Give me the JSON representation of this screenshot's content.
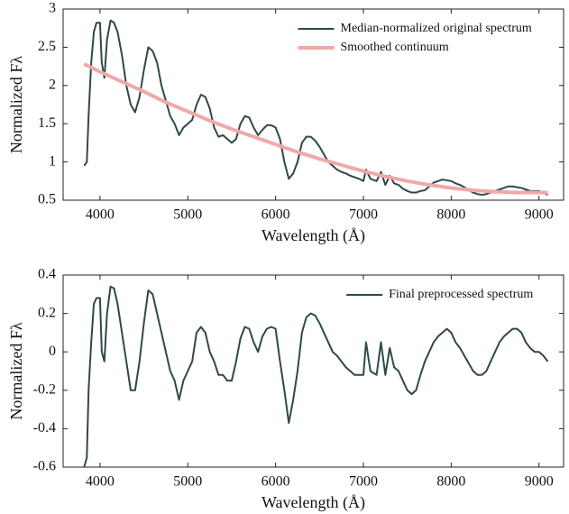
{
  "chart_data": [
    {
      "type": "line",
      "x_label": "Wavelength (Å)",
      "y_label": "Normalized Fλ",
      "xlim": [
        3580,
        9280
      ],
      "xticks": [
        4000,
        5000,
        6000,
        7000,
        8000,
        9000
      ],
      "ylim": [
        0.5,
        3
      ],
      "yticks": [
        0.5,
        1,
        1.5,
        2,
        2.5,
        3
      ],
      "legend": "upper right",
      "series": [
        {
          "name": "Median-normalized original spectrum",
          "color": "#2e4a48",
          "width": 2,
          "x": [
            3820,
            3850,
            3870,
            3900,
            3930,
            3960,
            4000,
            4020,
            4050,
            4080,
            4120,
            4160,
            4200,
            4250,
            4300,
            4350,
            4400,
            4450,
            4500,
            4550,
            4600,
            4650,
            4700,
            4750,
            4800,
            4850,
            4900,
            4950,
            5000,
            5050,
            5100,
            5150,
            5200,
            5250,
            5300,
            5350,
            5400,
            5450,
            5500,
            5550,
            5600,
            5650,
            5700,
            5750,
            5800,
            5850,
            5900,
            5950,
            6000,
            6050,
            6100,
            6150,
            6200,
            6250,
            6300,
            6350,
            6400,
            6450,
            6500,
            6550,
            6600,
            6650,
            6700,
            6750,
            6800,
            6850,
            6900,
            6950,
            7000,
            7030,
            7080,
            7150,
            7200,
            7250,
            7300,
            7350,
            7400,
            7450,
            7500,
            7550,
            7600,
            7650,
            7700,
            7750,
            7800,
            7850,
            7900,
            7950,
            8000,
            8050,
            8100,
            8150,
            8200,
            8250,
            8300,
            8350,
            8400,
            8450,
            8500,
            8550,
            8600,
            8650,
            8700,
            8750,
            8800,
            8850,
            8900,
            8950,
            9000,
            9050,
            9100
          ],
          "values": [
            0.95,
            1.0,
            1.6,
            2.3,
            2.7,
            2.82,
            2.82,
            2.3,
            2.1,
            2.6,
            2.85,
            2.82,
            2.7,
            2.4,
            2.0,
            1.75,
            1.65,
            1.85,
            2.2,
            2.5,
            2.45,
            2.3,
            2.0,
            1.8,
            1.6,
            1.5,
            1.35,
            1.45,
            1.5,
            1.55,
            1.75,
            1.88,
            1.85,
            1.7,
            1.45,
            1.33,
            1.35,
            1.3,
            1.25,
            1.3,
            1.5,
            1.6,
            1.58,
            1.45,
            1.35,
            1.42,
            1.48,
            1.48,
            1.45,
            1.3,
            1.0,
            0.78,
            0.85,
            1.0,
            1.25,
            1.33,
            1.33,
            1.28,
            1.2,
            1.1,
            1.0,
            0.95,
            0.9,
            0.87,
            0.85,
            0.82,
            0.8,
            0.78,
            0.75,
            0.9,
            0.78,
            0.75,
            0.87,
            0.7,
            0.82,
            0.72,
            0.7,
            0.65,
            0.62,
            0.6,
            0.6,
            0.62,
            0.63,
            0.68,
            0.73,
            0.75,
            0.77,
            0.76,
            0.75,
            0.72,
            0.7,
            0.67,
            0.63,
            0.6,
            0.58,
            0.57,
            0.58,
            0.6,
            0.62,
            0.64,
            0.66,
            0.68,
            0.68,
            0.67,
            0.66,
            0.64,
            0.62,
            0.62,
            0.62,
            0.6,
            0.57
          ]
        },
        {
          "name": "Smoothed continuum",
          "color": "#f0a8a8",
          "width": 4,
          "x": [
            3820,
            4000,
            4250,
            4500,
            4750,
            5000,
            5250,
            5500,
            5750,
            6000,
            6250,
            6500,
            6750,
            7000,
            7250,
            7500,
            7750,
            8000,
            8250,
            8500,
            8750,
            9000,
            9100
          ],
          "values": [
            2.28,
            2.18,
            2.05,
            1.92,
            1.78,
            1.66,
            1.54,
            1.43,
            1.33,
            1.23,
            1.13,
            1.04,
            0.96,
            0.88,
            0.81,
            0.75,
            0.7,
            0.66,
            0.63,
            0.61,
            0.6,
            0.6,
            0.6
          ]
        }
      ]
    },
    {
      "type": "line",
      "x_label": "Wavelength (Å)",
      "y_label": "Normalized Fλ",
      "xlim": [
        3580,
        9280
      ],
      "xticks": [
        4000,
        5000,
        6000,
        7000,
        8000,
        9000
      ],
      "ylim": [
        -0.6,
        0.4
      ],
      "yticks": [
        -0.6,
        -0.4,
        -0.2,
        0,
        0.2,
        0.4
      ],
      "legend": "upper right",
      "series": [
        {
          "name": "Final preprocessed spectrum",
          "color": "#2e4a48",
          "width": 2,
          "x": [
            3820,
            3850,
            3870,
            3900,
            3930,
            3960,
            4000,
            4020,
            4050,
            4080,
            4120,
            4160,
            4200,
            4250,
            4300,
            4350,
            4400,
            4450,
            4500,
            4550,
            4600,
            4650,
            4700,
            4750,
            4800,
            4850,
            4900,
            4950,
            5000,
            5050,
            5100,
            5150,
            5200,
            5250,
            5300,
            5350,
            5400,
            5450,
            5500,
            5550,
            5600,
            5650,
            5700,
            5750,
            5800,
            5850,
            5900,
            5950,
            6000,
            6050,
            6100,
            6150,
            6200,
            6250,
            6300,
            6350,
            6400,
            6450,
            6500,
            6550,
            6600,
            6650,
            6700,
            6750,
            6800,
            6850,
            6900,
            6950,
            7000,
            7030,
            7080,
            7150,
            7200,
            7250,
            7300,
            7350,
            7400,
            7450,
            7500,
            7550,
            7600,
            7650,
            7700,
            7750,
            7800,
            7850,
            7900,
            7950,
            8000,
            8050,
            8100,
            8150,
            8200,
            8250,
            8300,
            8350,
            8400,
            8450,
            8500,
            8550,
            8600,
            8650,
            8700,
            8750,
            8800,
            8850,
            8900,
            8950,
            9000,
            9050,
            9100
          ],
          "values": [
            -0.6,
            -0.55,
            -0.2,
            0.05,
            0.25,
            0.28,
            0.28,
            0.0,
            -0.05,
            0.2,
            0.34,
            0.33,
            0.25,
            0.1,
            -0.05,
            -0.2,
            -0.2,
            -0.05,
            0.15,
            0.32,
            0.3,
            0.2,
            0.1,
            0.0,
            -0.1,
            -0.15,
            -0.25,
            -0.15,
            -0.1,
            -0.05,
            0.1,
            0.13,
            0.1,
            0.0,
            -0.05,
            -0.12,
            -0.12,
            -0.15,
            -0.15,
            -0.05,
            0.07,
            0.13,
            0.12,
            0.05,
            0.0,
            0.08,
            0.12,
            0.13,
            0.12,
            -0.05,
            -0.2,
            -0.37,
            -0.25,
            -0.1,
            0.1,
            0.18,
            0.2,
            0.19,
            0.15,
            0.1,
            0.05,
            0.0,
            -0.02,
            -0.05,
            -0.08,
            -0.1,
            -0.12,
            -0.12,
            -0.12,
            0.05,
            -0.1,
            -0.12,
            0.05,
            -0.12,
            0.02,
            -0.08,
            -0.1,
            -0.15,
            -0.2,
            -0.22,
            -0.2,
            -0.12,
            -0.05,
            0.0,
            0.05,
            0.08,
            0.1,
            0.12,
            0.1,
            0.05,
            0.02,
            -0.02,
            -0.06,
            -0.1,
            -0.12,
            -0.12,
            -0.1,
            -0.05,
            0.0,
            0.05,
            0.08,
            0.1,
            0.12,
            0.12,
            0.1,
            0.05,
            0.02,
            0.0,
            0.0,
            -0.02,
            -0.05
          ]
        }
      ]
    }
  ]
}
